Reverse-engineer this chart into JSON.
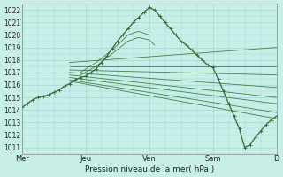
{
  "title": "Pression niveau de la mer( hPa )",
  "background_color": "#c8eee8",
  "grid_color": "#a0d8d0",
  "line_color": "#2d6e2d",
  "ylim": [
    1010.5,
    1022.5
  ],
  "yticks": [
    1011,
    1012,
    1013,
    1014,
    1015,
    1016,
    1017,
    1018,
    1019,
    1020,
    1021,
    1022
  ],
  "xlim": [
    0,
    96
  ],
  "xtick_positions": [
    0,
    24,
    48,
    72,
    96
  ],
  "xtick_labels": [
    "Mer",
    "Jeu",
    "Ven",
    "Sam",
    "D"
  ],
  "figsize": [
    3.2,
    2.0
  ],
  "dpi": 100,
  "main_line": [
    [
      0,
      1014.2
    ],
    [
      2,
      1014.5
    ],
    [
      4,
      1014.8
    ],
    [
      6,
      1015.0
    ],
    [
      8,
      1015.1
    ],
    [
      10,
      1015.2
    ],
    [
      12,
      1015.4
    ],
    [
      14,
      1015.6
    ],
    [
      16,
      1015.9
    ],
    [
      18,
      1016.1
    ],
    [
      20,
      1016.4
    ],
    [
      22,
      1016.6
    ],
    [
      24,
      1016.7
    ],
    [
      26,
      1017.0
    ],
    [
      28,
      1017.3
    ],
    [
      30,
      1017.8
    ],
    [
      32,
      1018.3
    ],
    [
      34,
      1018.9
    ],
    [
      36,
      1019.5
    ],
    [
      38,
      1020.0
    ],
    [
      40,
      1020.5
    ],
    [
      42,
      1021.0
    ],
    [
      44,
      1021.4
    ],
    [
      46,
      1021.8
    ],
    [
      48,
      1022.2
    ],
    [
      50,
      1022.0
    ],
    [
      52,
      1021.5
    ],
    [
      54,
      1021.0
    ],
    [
      56,
      1020.5
    ],
    [
      58,
      1020.0
    ],
    [
      60,
      1019.5
    ],
    [
      62,
      1019.2
    ],
    [
      64,
      1018.8
    ],
    [
      66,
      1018.4
    ],
    [
      68,
      1018.0
    ],
    [
      70,
      1017.6
    ],
    [
      72,
      1017.4
    ],
    [
      74,
      1016.5
    ],
    [
      76,
      1015.5
    ],
    [
      78,
      1014.5
    ],
    [
      80,
      1013.5
    ],
    [
      82,
      1012.5
    ],
    [
      84,
      1011.0
    ],
    [
      86,
      1011.2
    ],
    [
      88,
      1011.8
    ],
    [
      90,
      1012.3
    ],
    [
      92,
      1012.8
    ],
    [
      94,
      1013.2
    ],
    [
      96,
      1013.5
    ]
  ],
  "ensemble_lines": [
    [
      18,
      1017.8,
      96,
      1019.0
    ],
    [
      18,
      1017.5,
      96,
      1017.5
    ],
    [
      18,
      1017.2,
      96,
      1016.8
    ],
    [
      18,
      1017.0,
      96,
      1015.8
    ],
    [
      18,
      1016.8,
      96,
      1015.0
    ],
    [
      18,
      1016.6,
      96,
      1014.5
    ],
    [
      18,
      1016.4,
      96,
      1013.8
    ],
    [
      18,
      1016.3,
      96,
      1013.3
    ]
  ],
  "wiggly_lines": [
    [
      [
        22,
        1016.8
      ],
      [
        28,
        1017.5
      ],
      [
        34,
        1018.5
      ],
      [
        40,
        1019.5
      ],
      [
        44,
        1019.8
      ],
      [
        48,
        1019.6
      ],
      [
        50,
        1019.2
      ]
    ],
    [
      [
        22,
        1017.0
      ],
      [
        28,
        1017.8
      ],
      [
        34,
        1018.8
      ],
      [
        40,
        1020.0
      ],
      [
        44,
        1020.3
      ],
      [
        48,
        1020.0
      ]
    ]
  ]
}
